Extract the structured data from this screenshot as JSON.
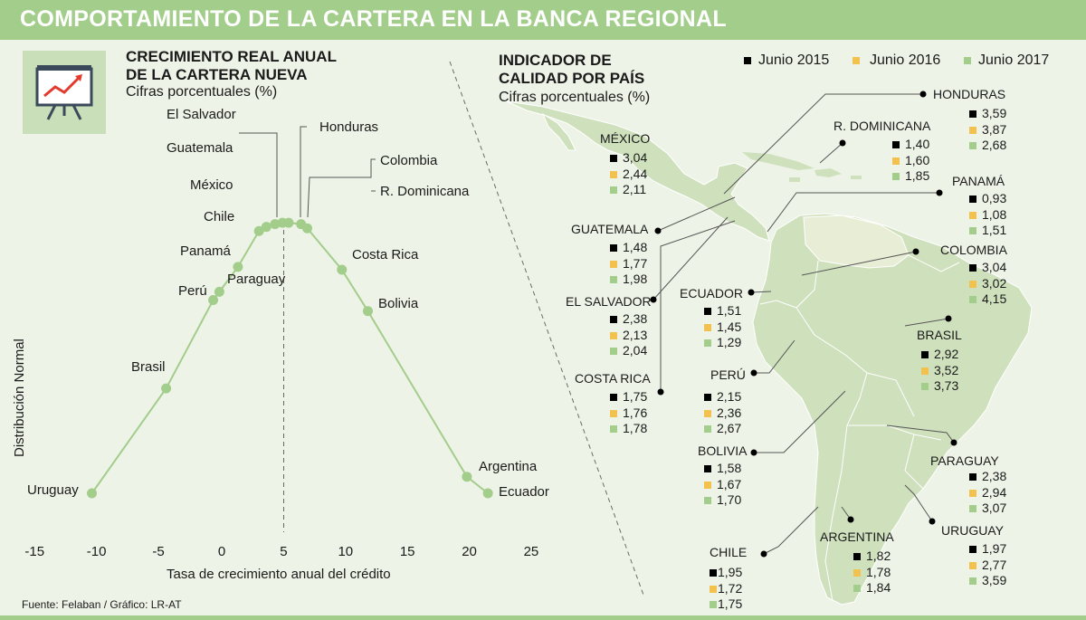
{
  "title": "COMPORTAMIENTO DE LA CARTERA EN LA BANCA REGIONAL",
  "colors": {
    "accent": "#a3cd8b",
    "y2015": "#000000",
    "y2016": "#f2c14e",
    "y2017": "#a3cd8b",
    "line": "#a3cd8b",
    "map": "#cfe0bd"
  },
  "source": "Fuente: Felaban / Gráfico: LR-AT",
  "chart_data": [
    {
      "type": "line",
      "title": "CRECIMIENTO REAL ANUAL DE LA CARTERA NUEVA",
      "title_line1": "CRECIMIENTO REAL ANUAL",
      "title_line2": "DE LA CARTERA NUEVA",
      "subtitle": "Cifras porcentuales (%)",
      "xlabel": "Tasa de crecimiento anual del crédito",
      "ylabel": "Distribución Normal",
      "xlim": [
        -15,
        25
      ],
      "ylim": [
        0,
        1
      ],
      "xticks": [
        "-15",
        "-10",
        "-5",
        "0",
        "5",
        "10",
        "15",
        "20",
        "25"
      ],
      "reference_line_x": 5,
      "points": [
        {
          "label": "Uruguay",
          "x": -10.5,
          "y": 0.0
        },
        {
          "label": "Brasil",
          "x": -4.5,
          "y": 0.38
        },
        {
          "label": "Perú",
          "x": -0.7,
          "y": 0.7
        },
        {
          "label": "Paraguay",
          "x": -0.2,
          "y": 0.73
        },
        {
          "label": "Panamá",
          "x": 1.3,
          "y": 0.82
        },
        {
          "label": "Chile",
          "x": 3.0,
          "y": 0.95
        },
        {
          "label": "Guatemala",
          "x": 3.6,
          "y": 0.965
        },
        {
          "label": "El Salvador",
          "x": 4.3,
          "y": 0.975
        },
        {
          "label": "México",
          "x": 4.9,
          "y": 0.98
        },
        {
          "label": "Honduras",
          "x": 5.4,
          "y": 0.98
        },
        {
          "label": "Colombia",
          "x": 6.4,
          "y": 0.975
        },
        {
          "label": "R. Dominicana",
          "x": 6.9,
          "y": 0.96
        },
        {
          "label": "Costa Rica",
          "x": 9.7,
          "y": 0.81
        },
        {
          "label": "Bolivia",
          "x": 11.8,
          "y": 0.66
        },
        {
          "label": "Argentina",
          "x": 19.8,
          "y": 0.06
        },
        {
          "label": "Ecuador",
          "x": 21.5,
          "y": 0.0
        }
      ]
    },
    {
      "type": "table",
      "title": "INDICADOR DE CALIDAD POR PAÍS",
      "title_line1": "INDICADOR DE",
      "title_line2": "CALIDAD POR PAÍS",
      "subtitle": "Cifras porcentuales (%)",
      "series": [
        "Junio 2015",
        "Junio 2016",
        "Junio 2017"
      ],
      "countries": [
        {
          "name": "HONDURAS",
          "values": [
            "3,59",
            "3,87",
            "2,68"
          ]
        },
        {
          "name": "R. DOMINICANA",
          "values": [
            "1,40",
            "1,60",
            "1,85"
          ]
        },
        {
          "name": "MÉXICO",
          "values": [
            "3,04",
            "2,44",
            "2,11"
          ]
        },
        {
          "name": "PANAMÁ",
          "values": [
            "0,93",
            "1,08",
            "1,51"
          ]
        },
        {
          "name": "GUATEMALA",
          "values": [
            "1,48",
            "1,77",
            "1,98"
          ]
        },
        {
          "name": "COLOMBIA",
          "values": [
            "3,04",
            "3,02",
            "4,15"
          ]
        },
        {
          "name": "EL SALVADOR",
          "values": [
            "2,38",
            "2,13",
            "2,04"
          ]
        },
        {
          "name": "ECUADOR",
          "values": [
            "1,51",
            "1,45",
            "1,29"
          ]
        },
        {
          "name": "BRASIL",
          "values": [
            "2,92",
            "3,52",
            "3,73"
          ]
        },
        {
          "name": "COSTA RICA",
          "values": [
            "1,75",
            "1,76",
            "1,78"
          ]
        },
        {
          "name": "PERÚ",
          "values": [
            "2,15",
            "2,36",
            "2,67"
          ]
        },
        {
          "name": "BOLIVIA",
          "values": [
            "1,58",
            "1,67",
            "1,70"
          ]
        },
        {
          "name": "PARAGUAY",
          "values": [
            "2,38",
            "2,94",
            "3,07"
          ]
        },
        {
          "name": "URUGUAY",
          "values": [
            "1,97",
            "2,77",
            "3,59"
          ]
        },
        {
          "name": "ARGENTINA",
          "values": [
            "1,82",
            "1,78",
            "1,84"
          ]
        },
        {
          "name": "CHILE",
          "values": [
            "1,95",
            "1,72",
            "1,75"
          ]
        }
      ]
    }
  ]
}
